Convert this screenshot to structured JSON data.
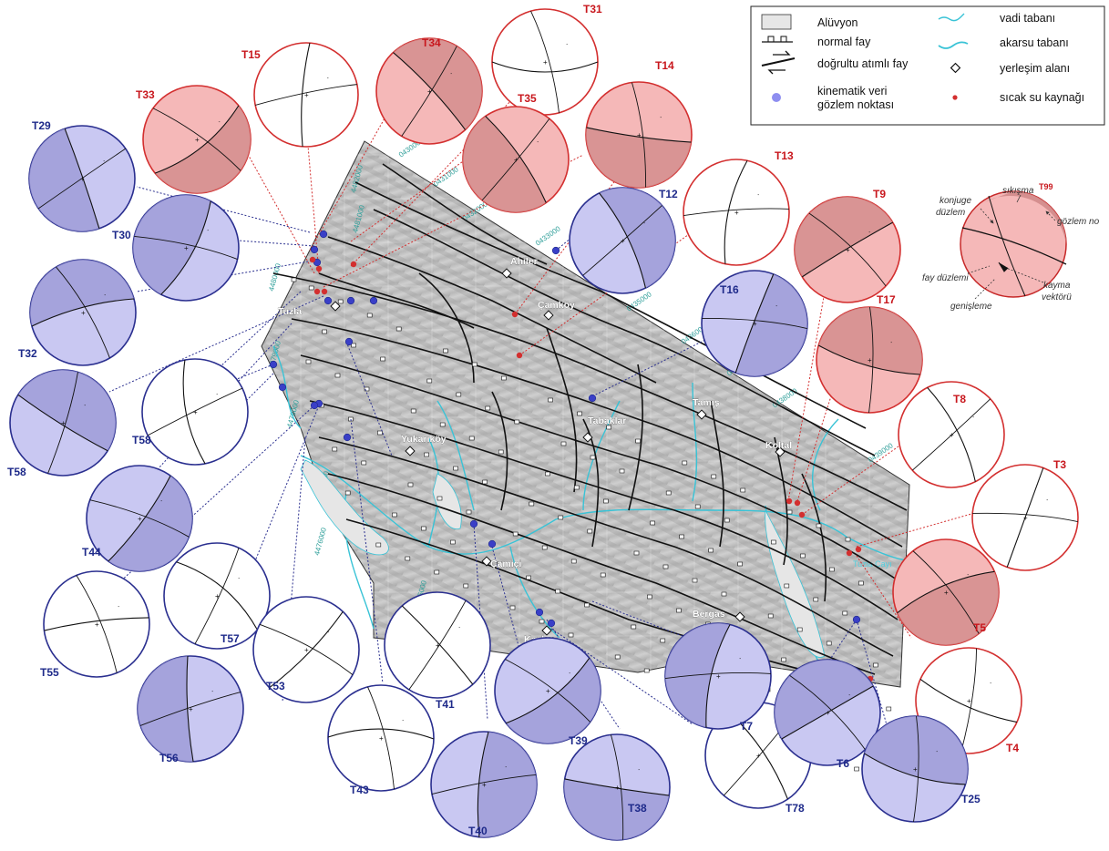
{
  "map": {
    "places": [
      {
        "id": "tuzla",
        "label": "Tuzla"
      },
      {
        "id": "ahiler",
        "label": "Ahiler"
      },
      {
        "id": "camkoy",
        "label": "Çamköy"
      },
      {
        "id": "yukarikoy",
        "label": "Yukarıköy"
      },
      {
        "id": "tabaklar",
        "label": "Tabaklar"
      },
      {
        "id": "tamis",
        "label": "Tamış"
      },
      {
        "id": "koltal",
        "label": "Koltal"
      },
      {
        "id": "camici",
        "label": "Çamiçi"
      },
      {
        "id": "kaskaya",
        "label": "Kaşkaya"
      },
      {
        "id": "bergas",
        "label": "Bergas"
      }
    ],
    "river_label": "Tuzla Çayı",
    "grid_labels": [
      "0430000",
      "0431000",
      "0432000",
      "0433000",
      "0434000",
      "0435000",
      "0436000",
      "0437000",
      "0438000",
      "0439000",
      "4482000",
      "4481000",
      "4480000",
      "4479000",
      "4478000",
      "4477000",
      "4476000",
      "4475000"
    ]
  },
  "legend": {
    "alluvium": "Alüvyon",
    "normal_fault": "normal fay",
    "strike_slip_fault": "doğrultu atımlı fay",
    "kinematic_point": "kinematik veri gözlem noktası",
    "kinematic_line1": "kinematik veri",
    "kinematic_line2": "gözlem noktası",
    "valley_floor": "vadi tabanı",
    "stream_floor": "akarsu tabanı",
    "settlement": "yerleşim alanı",
    "hot_spring": "sıcak su kaynağı"
  },
  "key_diagram": {
    "station": "T99",
    "conjugate_plane_1": "konjuge",
    "conjugate_plane_2": "düzlem",
    "compression": "sıkışma",
    "observation_no": "gözlem no",
    "fault_plane": "fay düzlemi",
    "extension": "genişleme",
    "slip_vector_1": "kayma",
    "slip_vector_2": "vektörü"
  },
  "stations": [
    {
      "id": "T31",
      "group": "red",
      "style": "plain"
    },
    {
      "id": "T34",
      "group": "red",
      "style": "filled"
    },
    {
      "id": "T15",
      "group": "red",
      "style": "plain"
    },
    {
      "id": "T33",
      "group": "red",
      "style": "filled"
    },
    {
      "id": "T14",
      "group": "red",
      "style": "filled"
    },
    {
      "id": "T35",
      "group": "red",
      "style": "filled"
    },
    {
      "id": "T13",
      "group": "red",
      "style": "plain"
    },
    {
      "id": "T9",
      "group": "red",
      "style": "filled"
    },
    {
      "id": "T17",
      "group": "red",
      "style": "filled"
    },
    {
      "id": "T8",
      "group": "red",
      "style": "plain"
    },
    {
      "id": "T3",
      "group": "red",
      "style": "plain"
    },
    {
      "id": "T5",
      "group": "red",
      "style": "filled"
    },
    {
      "id": "T4",
      "group": "red",
      "style": "plain"
    },
    {
      "id": "T29",
      "group": "blue",
      "style": "filled"
    },
    {
      "id": "T30",
      "group": "blue",
      "style": "filled"
    },
    {
      "id": "T32",
      "group": "blue",
      "style": "filled"
    },
    {
      "id": "T58",
      "group": "blue",
      "style": "filled"
    },
    {
      "id": "T58",
      "group": "blue",
      "style": "plain"
    },
    {
      "id": "T44",
      "group": "blue",
      "style": "filled"
    },
    {
      "id": "T55",
      "group": "blue",
      "style": "plain"
    },
    {
      "id": "T57",
      "group": "blue",
      "style": "plain"
    },
    {
      "id": "T56",
      "group": "blue",
      "style": "filled"
    },
    {
      "id": "T53",
      "group": "blue",
      "style": "plain"
    },
    {
      "id": "T43",
      "group": "blue",
      "style": "plain"
    },
    {
      "id": "T41",
      "group": "blue",
      "style": "plain"
    },
    {
      "id": "T40",
      "group": "blue",
      "style": "filled"
    },
    {
      "id": "T39",
      "group": "blue",
      "style": "filled"
    },
    {
      "id": "T38",
      "group": "blue",
      "style": "filled"
    },
    {
      "id": "T78",
      "group": "blue",
      "style": "plain"
    },
    {
      "id": "T7",
      "group": "blue",
      "style": "filled"
    },
    {
      "id": "T6",
      "group": "blue",
      "style": "filled"
    },
    {
      "id": "T25",
      "group": "blue",
      "style": "filled"
    },
    {
      "id": "T12",
      "group": "blue",
      "style": "filled"
    },
    {
      "id": "T16",
      "group": "blue",
      "style": "filled"
    }
  ],
  "colors": {
    "red_stroke": "#d32f2f",
    "red_fill": "#f5b8b8",
    "red_shade": "#d28b8b",
    "blue_stroke": "#2a2f8f",
    "blue_fill": "#c9c8f2",
    "blue_shade": "#9c9ad6",
    "hot_spring": "#d32f2f",
    "kinematic_point": "#3a3fc7",
    "river": "#39c3d6",
    "alluvium": "#e6e6e6"
  }
}
